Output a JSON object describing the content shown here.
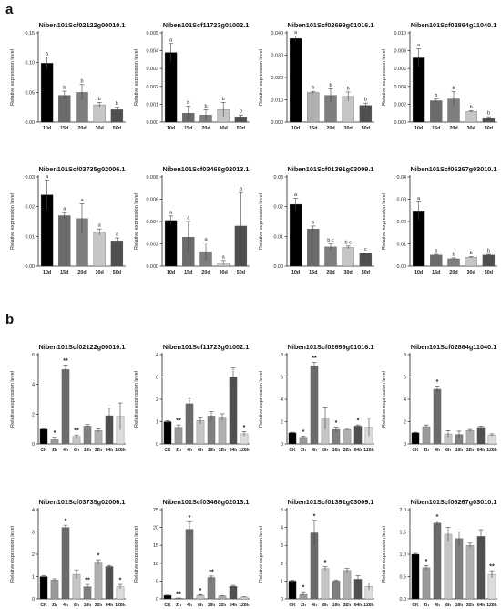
{
  "panels": [
    {
      "label": "a"
    },
    {
      "label": "b"
    }
  ],
  "chart_data": [
    {
      "panel": "a",
      "type": "bar",
      "title": "Niben101Scf02122g00010.1",
      "ylabel": "Relative expression level",
      "categories": [
        "10d",
        "15d",
        "20d",
        "30d",
        "50d"
      ],
      "values": [
        0.099,
        0.045,
        0.05,
        0.029,
        0.021
      ],
      "errors": [
        0.01,
        0.007,
        0.013,
        0.004,
        0.004
      ],
      "annotations": [
        "a",
        "b",
        "b",
        "b",
        "b"
      ],
      "ylim": [
        0,
        0.15
      ],
      "yticks": [
        "0.00",
        "0.05",
        "0.10",
        "0.15"
      ],
      "colors": [
        "#000000",
        "#6b6b6b",
        "#7e7e7e",
        "#c6c6c6",
        "#4f4f4f"
      ]
    },
    {
      "panel": "a",
      "type": "bar",
      "title": "Niben101Scf11723g01002.1",
      "ylabel": "Relative expression level",
      "categories": [
        "10d",
        "15d",
        "20d",
        "30d",
        "50d"
      ],
      "values": [
        0.0039,
        0.0005,
        0.0004,
        0.0007,
        0.0003
      ],
      "errors": [
        0.0005,
        0.0004,
        0.0003,
        0.0004,
        0.0001
      ],
      "annotations": [
        "a",
        "b",
        "b",
        "b",
        "b"
      ],
      "ylim": [
        0,
        0.005
      ],
      "yticks": [
        "0.000",
        "0.001",
        "0.002",
        "0.003",
        "0.004",
        "0.005"
      ],
      "colors": [
        "#000000",
        "#6b6b6b",
        "#7e7e7e",
        "#c6c6c6",
        "#4f4f4f"
      ]
    },
    {
      "panel": "a",
      "type": "bar",
      "title": "Niben101Scf02699g01016.1",
      "ylabel": "Relative expression level",
      "categories": [
        "10d",
        "15d",
        "20d",
        "30d",
        "50d"
      ],
      "values": [
        0.0375,
        0.0133,
        0.012,
        0.0115,
        0.0075
      ],
      "errors": [
        0.001,
        0.0005,
        0.003,
        0.002,
        0.001
      ],
      "annotations": [
        "a",
        "b",
        "b",
        "b",
        "b"
      ],
      "ylim": [
        0,
        0.04
      ],
      "yticks": [
        "0.000",
        "0.010",
        "0.020",
        "0.030",
        "0.040"
      ],
      "colors": [
        "#000000",
        "#b0b0b0",
        "#7e7e7e",
        "#c6c6c6",
        "#4f4f4f"
      ]
    },
    {
      "panel": "a",
      "type": "bar",
      "title": "Niben101Scf02864g11040.1",
      "ylabel": "Relative expression level",
      "categories": [
        "10d",
        "15d",
        "20d",
        "30d",
        "50d"
      ],
      "values": [
        0.0072,
        0.0024,
        0.0026,
        0.0012,
        0.0005
      ],
      "errors": [
        0.001,
        0.0002,
        0.0008,
        0.0001,
        0.0001
      ],
      "annotations": [
        "a",
        "b",
        "b",
        "b",
        "b"
      ],
      "ylim": [
        0,
        0.01
      ],
      "yticks": [
        "0.000",
        "0.002",
        "0.004",
        "0.006",
        "0.008",
        "0.010"
      ],
      "colors": [
        "#000000",
        "#6b6b6b",
        "#7e7e7e",
        "#c6c6c6",
        "#4f4f4f"
      ]
    },
    {
      "panel": "a",
      "type": "bar",
      "title": "Niben101Scf03735g02006.1",
      "ylabel": "Relative expression level",
      "categories": [
        "10d",
        "15d",
        "20d",
        "30d",
        "50d"
      ],
      "values": [
        0.024,
        0.017,
        0.016,
        0.0115,
        0.0085
      ],
      "errors": [
        0.005,
        0.001,
        0.005,
        0.001,
        0.001
      ],
      "annotations": [
        "a",
        "a",
        "a",
        "a",
        "a"
      ],
      "ylim": [
        0,
        0.03
      ],
      "yticks": [
        "0.00",
        "0.01",
        "0.02",
        "0.03"
      ],
      "colors": [
        "#000000",
        "#6b6b6b",
        "#7e7e7e",
        "#c6c6c6",
        "#4f4f4f"
      ]
    },
    {
      "panel": "a",
      "type": "bar",
      "title": "Niben101Scf03468g02013.1",
      "ylabel": "Relative expression level",
      "categories": [
        "10d",
        "15d",
        "20d",
        "30d",
        "50d"
      ],
      "values": [
        0.0041,
        0.0026,
        0.0013,
        0.0003,
        0.0036
      ],
      "errors": [
        0.0004,
        0.0014,
        0.0008,
        0.0002,
        0.003
      ],
      "annotations": [
        "a",
        "a",
        "a",
        "a",
        "a"
      ],
      "ylim": [
        0,
        0.008
      ],
      "yticks": [
        "0.000",
        "0.002",
        "0.004",
        "0.006",
        "0.008"
      ],
      "colors": [
        "#000000",
        "#6b6b6b",
        "#7e7e7e",
        "#c6c6c6",
        "#4f4f4f"
      ]
    },
    {
      "panel": "a",
      "type": "bar",
      "title": "Niben101Scf01391g03009.1",
      "ylabel": "Relative expression level",
      "categories": [
        "10d",
        "15d",
        "20d",
        "30d",
        "50d"
      ],
      "values": [
        0.0208,
        0.0125,
        0.0065,
        0.0063,
        0.0043
      ],
      "errors": [
        0.002,
        0.001,
        0.001,
        0.0005,
        0.0002
      ],
      "annotations": [
        "a",
        "b",
        "b c",
        "b c",
        "c"
      ],
      "ylim": [
        0,
        0.03
      ],
      "yticks": [
        "0.00",
        "0.01",
        "0.02",
        "0.03"
      ],
      "colors": [
        "#000000",
        "#6b6b6b",
        "#7e7e7e",
        "#c6c6c6",
        "#4f4f4f"
      ]
    },
    {
      "panel": "a",
      "type": "bar",
      "title": "Niben101Scf06267g03010.1",
      "ylabel": "Relative expression level",
      "categories": [
        "10d",
        "15d",
        "20d",
        "30d",
        "50d"
      ],
      "values": [
        0.0248,
        0.005,
        0.0033,
        0.004,
        0.005
      ],
      "errors": [
        0.004,
        0.0003,
        0.0004,
        0.0003,
        0.0003
      ],
      "annotations": [
        "a",
        "b",
        "b",
        "b",
        "b"
      ],
      "ylim": [
        0,
        0.04
      ],
      "yticks": [
        "0.00",
        "0.01",
        "0.02",
        "0.03",
        "0.04"
      ],
      "colors": [
        "#000000",
        "#6b6b6b",
        "#7e7e7e",
        "#c6c6c6",
        "#4f4f4f"
      ]
    },
    {
      "panel": "b",
      "type": "bar",
      "title": "Niben101Scf02122g00010.1",
      "ylabel": "Relative expression level",
      "categories": [
        "CK",
        "2h",
        "4h",
        "8h",
        "16h",
        "32h",
        "64h",
        "128h"
      ],
      "values": [
        1.0,
        0.35,
        5.0,
        0.5,
        1.2,
        0.9,
        1.9,
        1.85
      ],
      "errors": [
        0.05,
        0.1,
        0.3,
        0.1,
        0.1,
        0.1,
        0.5,
        0.9
      ],
      "annotations": [
        "",
        "*",
        "**",
        "**",
        "",
        "",
        "",
        ""
      ],
      "ylim": [
        0,
        6
      ],
      "yticks": [
        "0",
        "2",
        "4",
        "6"
      ],
      "colors": [
        "#000000",
        "#9a9a9a",
        "#6b6b6b",
        "#c6c6c6",
        "#7e7e7e",
        "#b0b0b0",
        "#4f4f4f",
        "#dcdcdc"
      ]
    },
    {
      "panel": "b",
      "type": "bar",
      "title": "Niben101Scf11723g01002.1",
      "ylabel": "Relative expression level",
      "categories": [
        "CK",
        "2h",
        "4h",
        "8h",
        "16h",
        "32h",
        "64h",
        "128h"
      ],
      "values": [
        1.0,
        0.75,
        1.8,
        1.05,
        1.25,
        1.2,
        3.0,
        0.45
      ],
      "errors": [
        0.05,
        0.1,
        0.3,
        0.15,
        0.2,
        0.15,
        0.4,
        0.1
      ],
      "annotations": [
        "",
        "**",
        "",
        "",
        "",
        "",
        "",
        "*"
      ],
      "ylim": [
        0,
        4
      ],
      "yticks": [
        "0",
        "1",
        "2",
        "3",
        "4"
      ],
      "colors": [
        "#000000",
        "#9a9a9a",
        "#6b6b6b",
        "#c6c6c6",
        "#7e7e7e",
        "#b0b0b0",
        "#4f4f4f",
        "#dcdcdc"
      ]
    },
    {
      "panel": "b",
      "type": "bar",
      "title": "Niben101Scf02699g01016.1",
      "ylabel": "Relative expression level",
      "categories": [
        "CK",
        "2h",
        "4h",
        "8h",
        "16h",
        "32h",
        "64h",
        "128h"
      ],
      "values": [
        1.0,
        0.6,
        7.0,
        2.3,
        1.3,
        1.3,
        1.6,
        1.5
      ],
      "errors": [
        0.05,
        0.1,
        0.3,
        1.0,
        0.2,
        0.1,
        0.1,
        0.8
      ],
      "annotations": [
        "",
        "*",
        "**",
        "",
        "*",
        "",
        "*",
        ""
      ],
      "ylim": [
        0,
        8
      ],
      "yticks": [
        "0",
        "2",
        "4",
        "6",
        "8"
      ],
      "colors": [
        "#000000",
        "#9a9a9a",
        "#6b6b6b",
        "#c6c6c6",
        "#7e7e7e",
        "#b0b0b0",
        "#4f4f4f",
        "#dcdcdc"
      ]
    },
    {
      "panel": "b",
      "type": "bar",
      "title": "Niben101Scf02864g11040.1",
      "ylabel": "Relative expression level",
      "categories": [
        "CK",
        "2h",
        "4h",
        "8h",
        "16h",
        "32h",
        "64h",
        "128h"
      ],
      "values": [
        1.0,
        1.55,
        4.9,
        0.9,
        0.85,
        1.2,
        1.5,
        0.8
      ],
      "errors": [
        0.05,
        0.15,
        0.3,
        0.3,
        0.3,
        0.1,
        0.1,
        0.1
      ],
      "annotations": [
        "",
        "",
        "*",
        "",
        "",
        "",
        "",
        ""
      ],
      "ylim": [
        0,
        8
      ],
      "yticks": [
        "0",
        "2",
        "4",
        "6",
        "8"
      ],
      "colors": [
        "#000000",
        "#9a9a9a",
        "#6b6b6b",
        "#c6c6c6",
        "#7e7e7e",
        "#b0b0b0",
        "#4f4f4f",
        "#dcdcdc"
      ]
    },
    {
      "panel": "b",
      "type": "bar",
      "title": "Niben101Scf03735g02006.1",
      "ylabel": "Relative expression level",
      "categories": [
        "CK",
        "2h",
        "4h",
        "8h",
        "16h",
        "32h",
        "64h",
        "128h"
      ],
      "values": [
        1.0,
        0.85,
        3.2,
        1.1,
        0.55,
        1.65,
        1.45,
        0.55
      ],
      "errors": [
        0.05,
        0.05,
        0.1,
        0.2,
        0.1,
        0.1,
        0.05,
        0.1
      ],
      "annotations": [
        "",
        "",
        "*",
        "",
        "**",
        "*",
        "",
        "*"
      ],
      "ylim": [
        0,
        4
      ],
      "yticks": [
        "0",
        "1",
        "2",
        "3",
        "4"
      ],
      "colors": [
        "#000000",
        "#9a9a9a",
        "#6b6b6b",
        "#c6c6c6",
        "#7e7e7e",
        "#b0b0b0",
        "#4f4f4f",
        "#dcdcdc"
      ]
    },
    {
      "panel": "b",
      "type": "bar",
      "title": "Niben101Scf03468g02013.1",
      "ylabel": "Relative expression level",
      "categories": [
        "CK",
        "2h",
        "4h",
        "8h",
        "16h",
        "32h",
        "64h",
        "128h"
      ],
      "values": [
        1.0,
        0.2,
        19.5,
        1.0,
        6.0,
        0.8,
        3.5,
        0.5
      ],
      "errors": [
        0.05,
        0.05,
        2.0,
        0.2,
        0.4,
        0.1,
        0.3,
        0.1
      ],
      "annotations": [
        "",
        "**",
        "*",
        "*",
        "**",
        "",
        "",
        ""
      ],
      "ylim": [
        0,
        25
      ],
      "yticks": [
        "0",
        "5",
        "10",
        "15",
        "20",
        "25"
      ],
      "colors": [
        "#000000",
        "#9a9a9a",
        "#6b6b6b",
        "#c6c6c6",
        "#7e7e7e",
        "#b0b0b0",
        "#4f4f4f",
        "#dcdcdc"
      ]
    },
    {
      "panel": "b",
      "type": "bar",
      "title": "Niben101Scf01391g03009.1",
      "ylabel": "Relative expression level",
      "categories": [
        "CK",
        "2h",
        "4h",
        "8h",
        "16h",
        "32h",
        "64h",
        "128h"
      ],
      "values": [
        1.0,
        0.3,
        3.7,
        1.7,
        1.0,
        1.6,
        1.1,
        0.7
      ],
      "errors": [
        0.05,
        0.1,
        0.7,
        0.1,
        0.05,
        0.1,
        0.2,
        0.2
      ],
      "annotations": [
        "",
        "*",
        "*",
        "*",
        "",
        "",
        "",
        ""
      ],
      "ylim": [
        0,
        5
      ],
      "yticks": [
        "0",
        "1",
        "2",
        "3",
        "4",
        "5"
      ],
      "colors": [
        "#000000",
        "#9a9a9a",
        "#6b6b6b",
        "#c6c6c6",
        "#7e7e7e",
        "#b0b0b0",
        "#4f4f4f",
        "#dcdcdc"
      ]
    },
    {
      "panel": "b",
      "type": "bar",
      "title": "Niben101Scf06267g03010.1",
      "ylabel": "Relative expression level",
      "categories": [
        "CK",
        "2h",
        "4h",
        "8h",
        "16h",
        "32h",
        "64h",
        "128h"
      ],
      "values": [
        1.0,
        0.7,
        1.7,
        1.45,
        1.35,
        1.2,
        1.4,
        0.55
      ],
      "errors": [
        0.02,
        0.05,
        0.05,
        0.15,
        0.15,
        0.05,
        0.15,
        0.08
      ],
      "annotations": [
        "",
        "*",
        "*",
        "",
        "",
        "",
        "",
        "**"
      ],
      "ylim": [
        0,
        2.0
      ],
      "yticks": [
        "0.0",
        "0.5",
        "1.0",
        "1.5",
        "2.0"
      ],
      "colors": [
        "#000000",
        "#9a9a9a",
        "#6b6b6b",
        "#c6c6c6",
        "#7e7e7e",
        "#b0b0b0",
        "#4f4f4f",
        "#dcdcdc"
      ]
    }
  ]
}
